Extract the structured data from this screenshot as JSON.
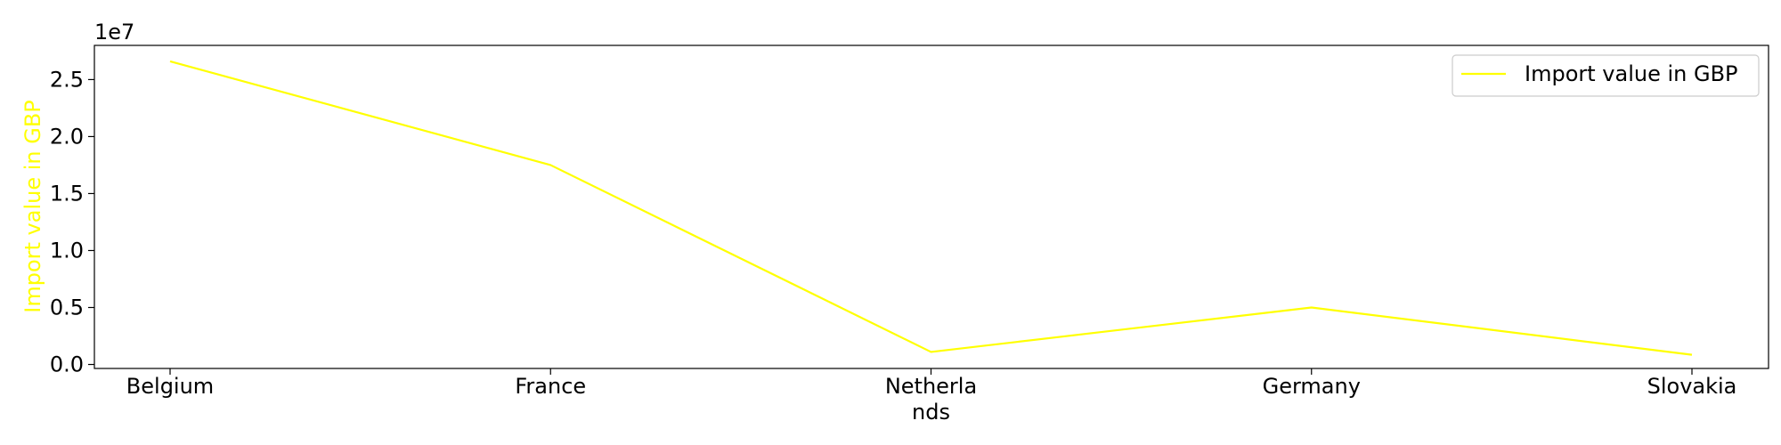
{
  "chart_data": {
    "type": "line",
    "categories": [
      "Belgium",
      "France",
      "Netherlands",
      "Germany",
      "Slovakia"
    ],
    "category_display": [
      [
        "Belgium"
      ],
      [
        "France"
      ],
      [
        "Netherla",
        "nds"
      ],
      [
        "Germany"
      ],
      [
        "Slovakia"
      ]
    ],
    "series": [
      {
        "name": "Import value in GBP",
        "values": [
          26600000,
          17500000,
          1100000,
          5000000,
          850000
        ],
        "color": "#ffff00"
      }
    ],
    "ylabel": "Import value in GBP",
    "ylabel_color": "#ffff00",
    "xlabel": "",
    "ylim": [
      -350000,
      28000000
    ],
    "yticks": [
      0,
      5000000,
      10000000,
      15000000,
      20000000,
      25000000
    ],
    "ytick_labels": [
      "0.0",
      "0.5",
      "1.0",
      "1.5",
      "2.0",
      "2.5"
    ],
    "offset_text": "1e7",
    "grid": false,
    "legend_position": "top-right"
  }
}
